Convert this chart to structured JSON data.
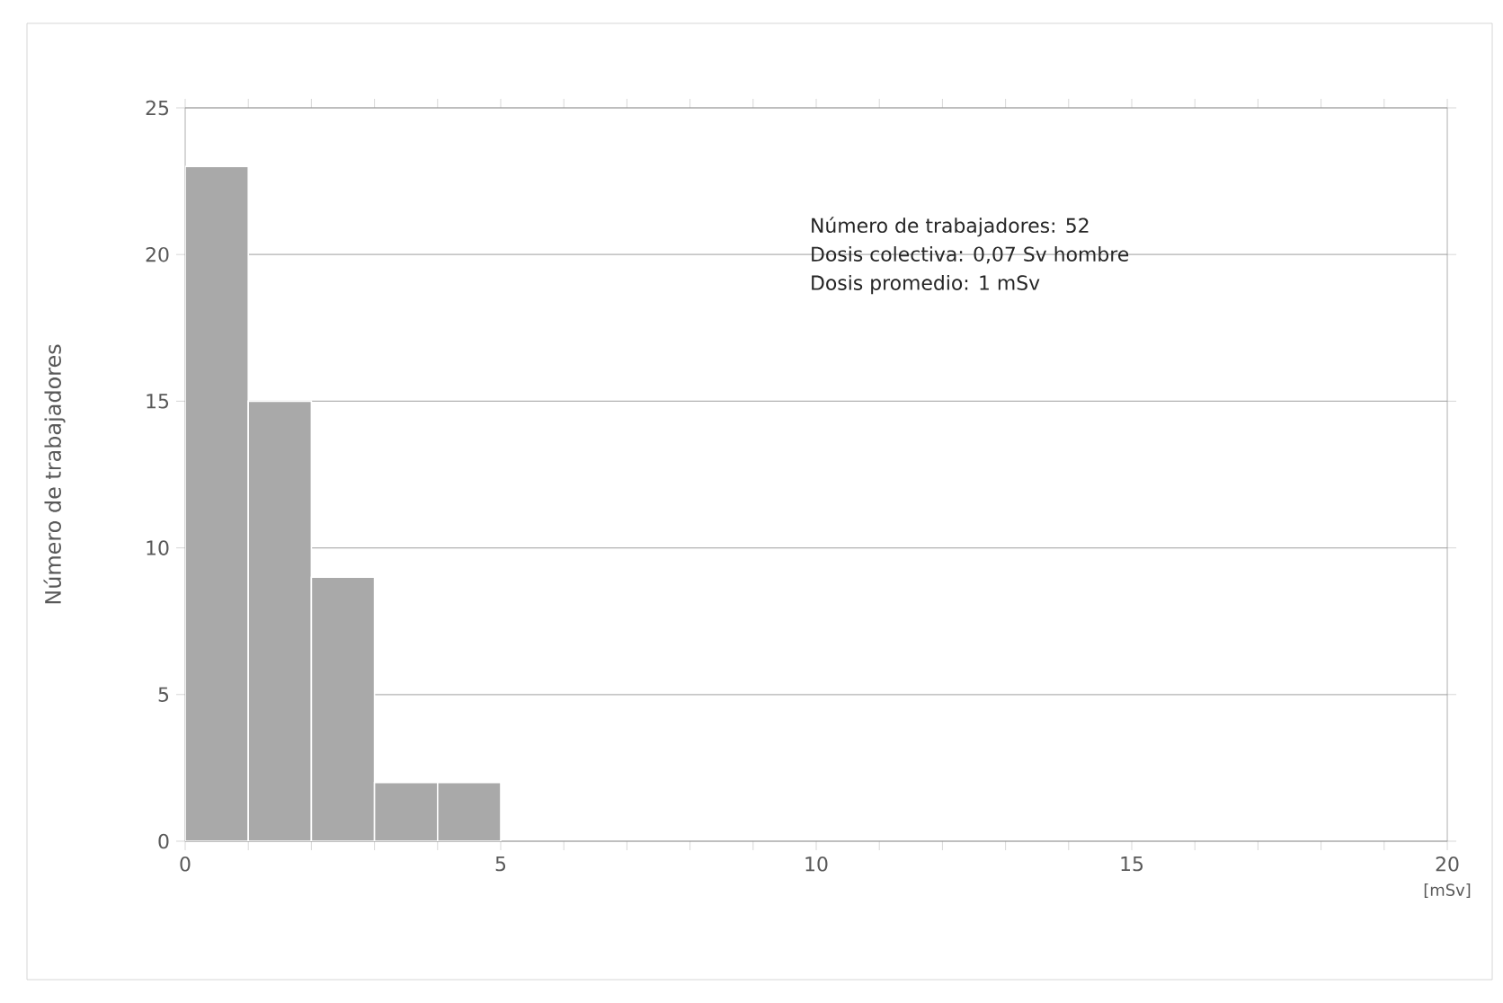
{
  "chart_data": {
    "type": "histogram",
    "ylabel": "Número de trabajadores",
    "xlabel": "[mSv]",
    "bins": [
      0,
      1,
      2,
      3,
      4,
      5
    ],
    "values": [
      23,
      15,
      9,
      2,
      2
    ],
    "color": "#a9a9a9",
    "xlim": [
      0,
      20
    ],
    "ylim": [
      0,
      25
    ],
    "xticks": [
      0,
      {
        "value": 1,
        "label": null
      },
      {
        "value": 2,
        "label": null
      },
      {
        "value": 3,
        "label": null
      },
      {
        "value": 4,
        "label": null
      },
      5,
      {
        "value": 6,
        "label": null
      },
      {
        "value": 7,
        "label": null
      },
      {
        "value": 8,
        "label": null
      },
      {
        "value": 9,
        "label": null
      },
      10,
      {
        "value": 11,
        "label": null
      },
      {
        "value": 12,
        "label": null
      },
      {
        "value": 13,
        "label": null
      },
      {
        "value": 14,
        "label": null
      },
      15,
      {
        "value": 16,
        "label": null
      },
      {
        "value": 17,
        "label": null
      },
      {
        "value": 18,
        "label": null
      },
      {
        "value": 19,
        "label": null
      },
      20
    ],
    "yticks": [
      0,
      5,
      10,
      15,
      20,
      25
    ],
    "grid": "y",
    "annotations": [
      "Número de trabajadores: 52",
      "Dosis colectiva: 0,07 Sv hombre",
      "Dosis promedio: 1 mSv"
    ]
  }
}
